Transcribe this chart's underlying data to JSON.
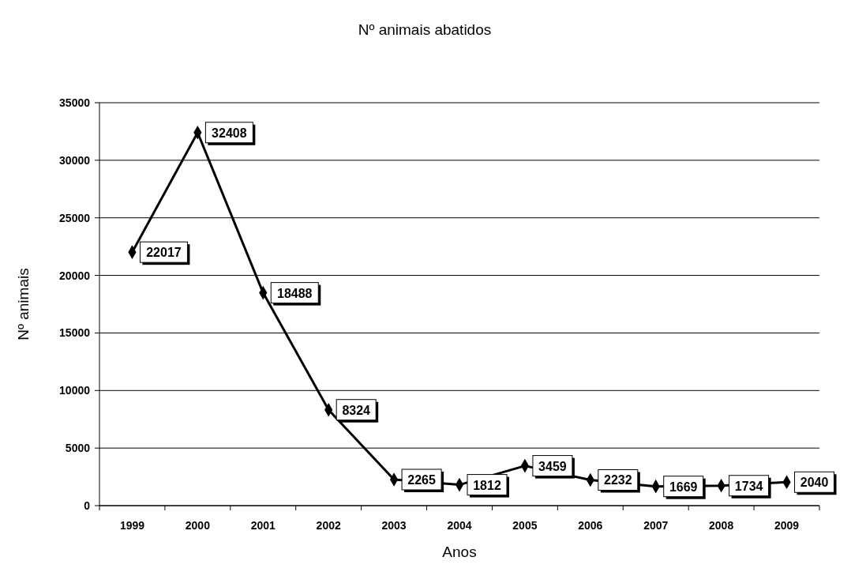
{
  "chart_data": {
    "type": "line",
    "title": "Nº animais abatidos",
    "xlabel": "Anos",
    "ylabel": "Nº animais",
    "categories": [
      "1999",
      "2000",
      "2001",
      "2002",
      "2003",
      "2004",
      "2005",
      "2006",
      "2007",
      "2008",
      "2009"
    ],
    "series": [
      {
        "color": "#000000",
        "values": [
          22017,
          32408,
          18488,
          8324,
          2265,
          1812,
          3459,
          2232,
          1669,
          1734,
          2040
        ]
      }
    ],
    "ylim": [
      0,
      35000
    ],
    "yticks": [
      0,
      5000,
      10000,
      15000,
      20000,
      25000,
      30000,
      35000
    ],
    "grid": "y",
    "marker": "diamond",
    "line_style": "solid",
    "data_labels": true
  }
}
